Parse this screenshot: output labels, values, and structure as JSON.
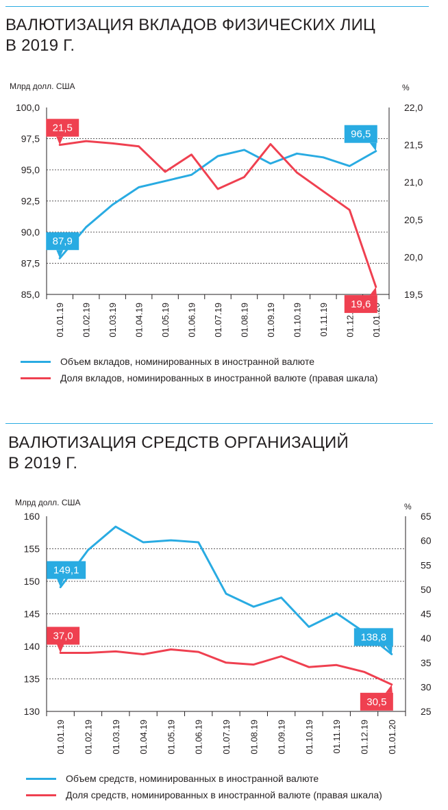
{
  "charts_text": [
    {
      "title_line1": "ВАЛЮТИЗАЦИЯ ВКЛАДОВ ФИЗИЧЕСКИХ ЛИЦ",
      "title_line2": "В 2019 Г.",
      "left_unit": "Млрд долл. США",
      "right_unit": "%",
      "legend": [
        "Объем вкладов, номинированных в иностранной валюте",
        "Доля вкладов, номинированных в иностранной валюте (правая шкала)"
      ]
    },
    {
      "title_line1": "ВАЛЮТИЗАЦИЯ СРЕДСТВ ОРГАНИЗАЦИЙ",
      "title_line2": "В 2019 Г.",
      "left_unit": "Млрд долл. США",
      "right_unit": "%",
      "legend": [
        "Объем средств, номинированных в иностранной валюте",
        "Доля средств, номинированных в иностранной валюте (правая шкала)"
      ]
    }
  ],
  "colors": {
    "blue": "#29abe2",
    "red": "#ef4050",
    "grid": "#231f20",
    "text": "#231f20"
  },
  "chart_data": [
    {
      "type": "line",
      "title": "ВАЛЮТИЗАЦИЯ ВКЛАДОВ ФИЗИЧЕСКИХ ЛИЦ В 2019 Г.",
      "x": [
        "01.01.19",
        "01.02.19",
        "01.03.19",
        "01.04.19",
        "01.05.19",
        "01.06.19",
        "01.07.19",
        "01.08.19",
        "01.09.19",
        "01.10.19",
        "01.11.19",
        "01.12.19",
        "01.01.20"
      ],
      "left_axis": {
        "label": "Млрд долл. США",
        "ylim": [
          85.0,
          100.0
        ],
        "ticks": [
          "85,0",
          "87,5",
          "90,0",
          "92,5",
          "95,0",
          "97,5",
          "100,0"
        ]
      },
      "right_axis": {
        "label": "%",
        "ylim": [
          19.5,
          22.0
        ],
        "ticks": [
          "19,5",
          "20,0",
          "20,5",
          "21,0",
          "21,5",
          "22,0"
        ]
      },
      "series": [
        {
          "name": "Объем вкладов, номинированных в иностранной валюте",
          "axis": "left",
          "color": "#29abe2",
          "values": [
            87.9,
            90.4,
            92.2,
            93.6,
            94.1,
            94.6,
            96.1,
            96.6,
            95.5,
            96.3,
            96.0,
            95.3,
            96.5
          ]
        },
        {
          "name": "Доля вкладов, номинированных в иностранной валюте (правая шкала)",
          "axis": "right",
          "color": "#ef4050",
          "values": [
            21.5,
            21.55,
            21.52,
            21.48,
            21.14,
            21.37,
            20.91,
            21.07,
            21.51,
            21.13,
            20.88,
            20.63,
            19.6
          ]
        }
      ],
      "callouts": [
        {
          "series": 1,
          "index": 0,
          "label": "21,5",
          "side": "above"
        },
        {
          "series": 0,
          "index": 12,
          "label": "96,5",
          "side": "above"
        },
        {
          "series": 0,
          "index": 0,
          "label": "87,9",
          "side": "above"
        },
        {
          "series": 1,
          "index": 12,
          "label": "19,6",
          "side": "below"
        }
      ],
      "grid": "horizontal-dashed",
      "legend_position": "bottom"
    },
    {
      "type": "line",
      "title": "ВАЛЮТИЗАЦИЯ СРЕДСТВ ОРГАНИЗАЦИЙ В 2019 Г.",
      "x": [
        "01.01.19",
        "01.02.19",
        "01.03.19",
        "01.04.19",
        "01.05.19",
        "01.06.19",
        "01.07.19",
        "01.08.19",
        "01.09.19",
        "01.10.19",
        "01.11.19",
        "01.12.19",
        "01.01.20"
      ],
      "left_axis": {
        "label": "Млрд долл. США",
        "ylim": [
          130,
          160
        ],
        "ticks": [
          "130",
          "135",
          "140",
          "145",
          "150",
          "155",
          "160"
        ]
      },
      "right_axis": {
        "label": "%",
        "ylim": [
          25,
          65
        ],
        "ticks": [
          "25",
          "30",
          "35",
          "40",
          "45",
          "50",
          "55",
          "60",
          "65"
        ]
      },
      "series": [
        {
          "name": "Объем средств, номинированных в иностранной валюте",
          "axis": "left",
          "color": "#29abe2",
          "values": [
            149.1,
            154.8,
            158.4,
            156.0,
            156.3,
            156.0,
            148.1,
            146.1,
            147.5,
            143.0,
            145.1,
            142.2,
            138.8
          ]
        },
        {
          "name": "Доля средств, номинированных в иностранной валюте (правая шкала)",
          "axis": "right",
          "color": "#ef4050",
          "values": [
            37.0,
            37.0,
            37.3,
            36.7,
            37.7,
            37.2,
            35.0,
            34.6,
            36.3,
            34.1,
            34.5,
            33.1,
            30.5
          ]
        }
      ],
      "callouts": [
        {
          "series": 0,
          "index": 0,
          "label": "149,1",
          "side": "above"
        },
        {
          "series": 1,
          "index": 0,
          "label": "37,0",
          "side": "above"
        },
        {
          "series": 0,
          "index": 12,
          "label": "138,8",
          "side": "above"
        },
        {
          "series": 1,
          "index": 12,
          "label": "30,5",
          "side": "below"
        }
      ],
      "grid": "horizontal-dashed",
      "legend_position": "bottom"
    }
  ]
}
